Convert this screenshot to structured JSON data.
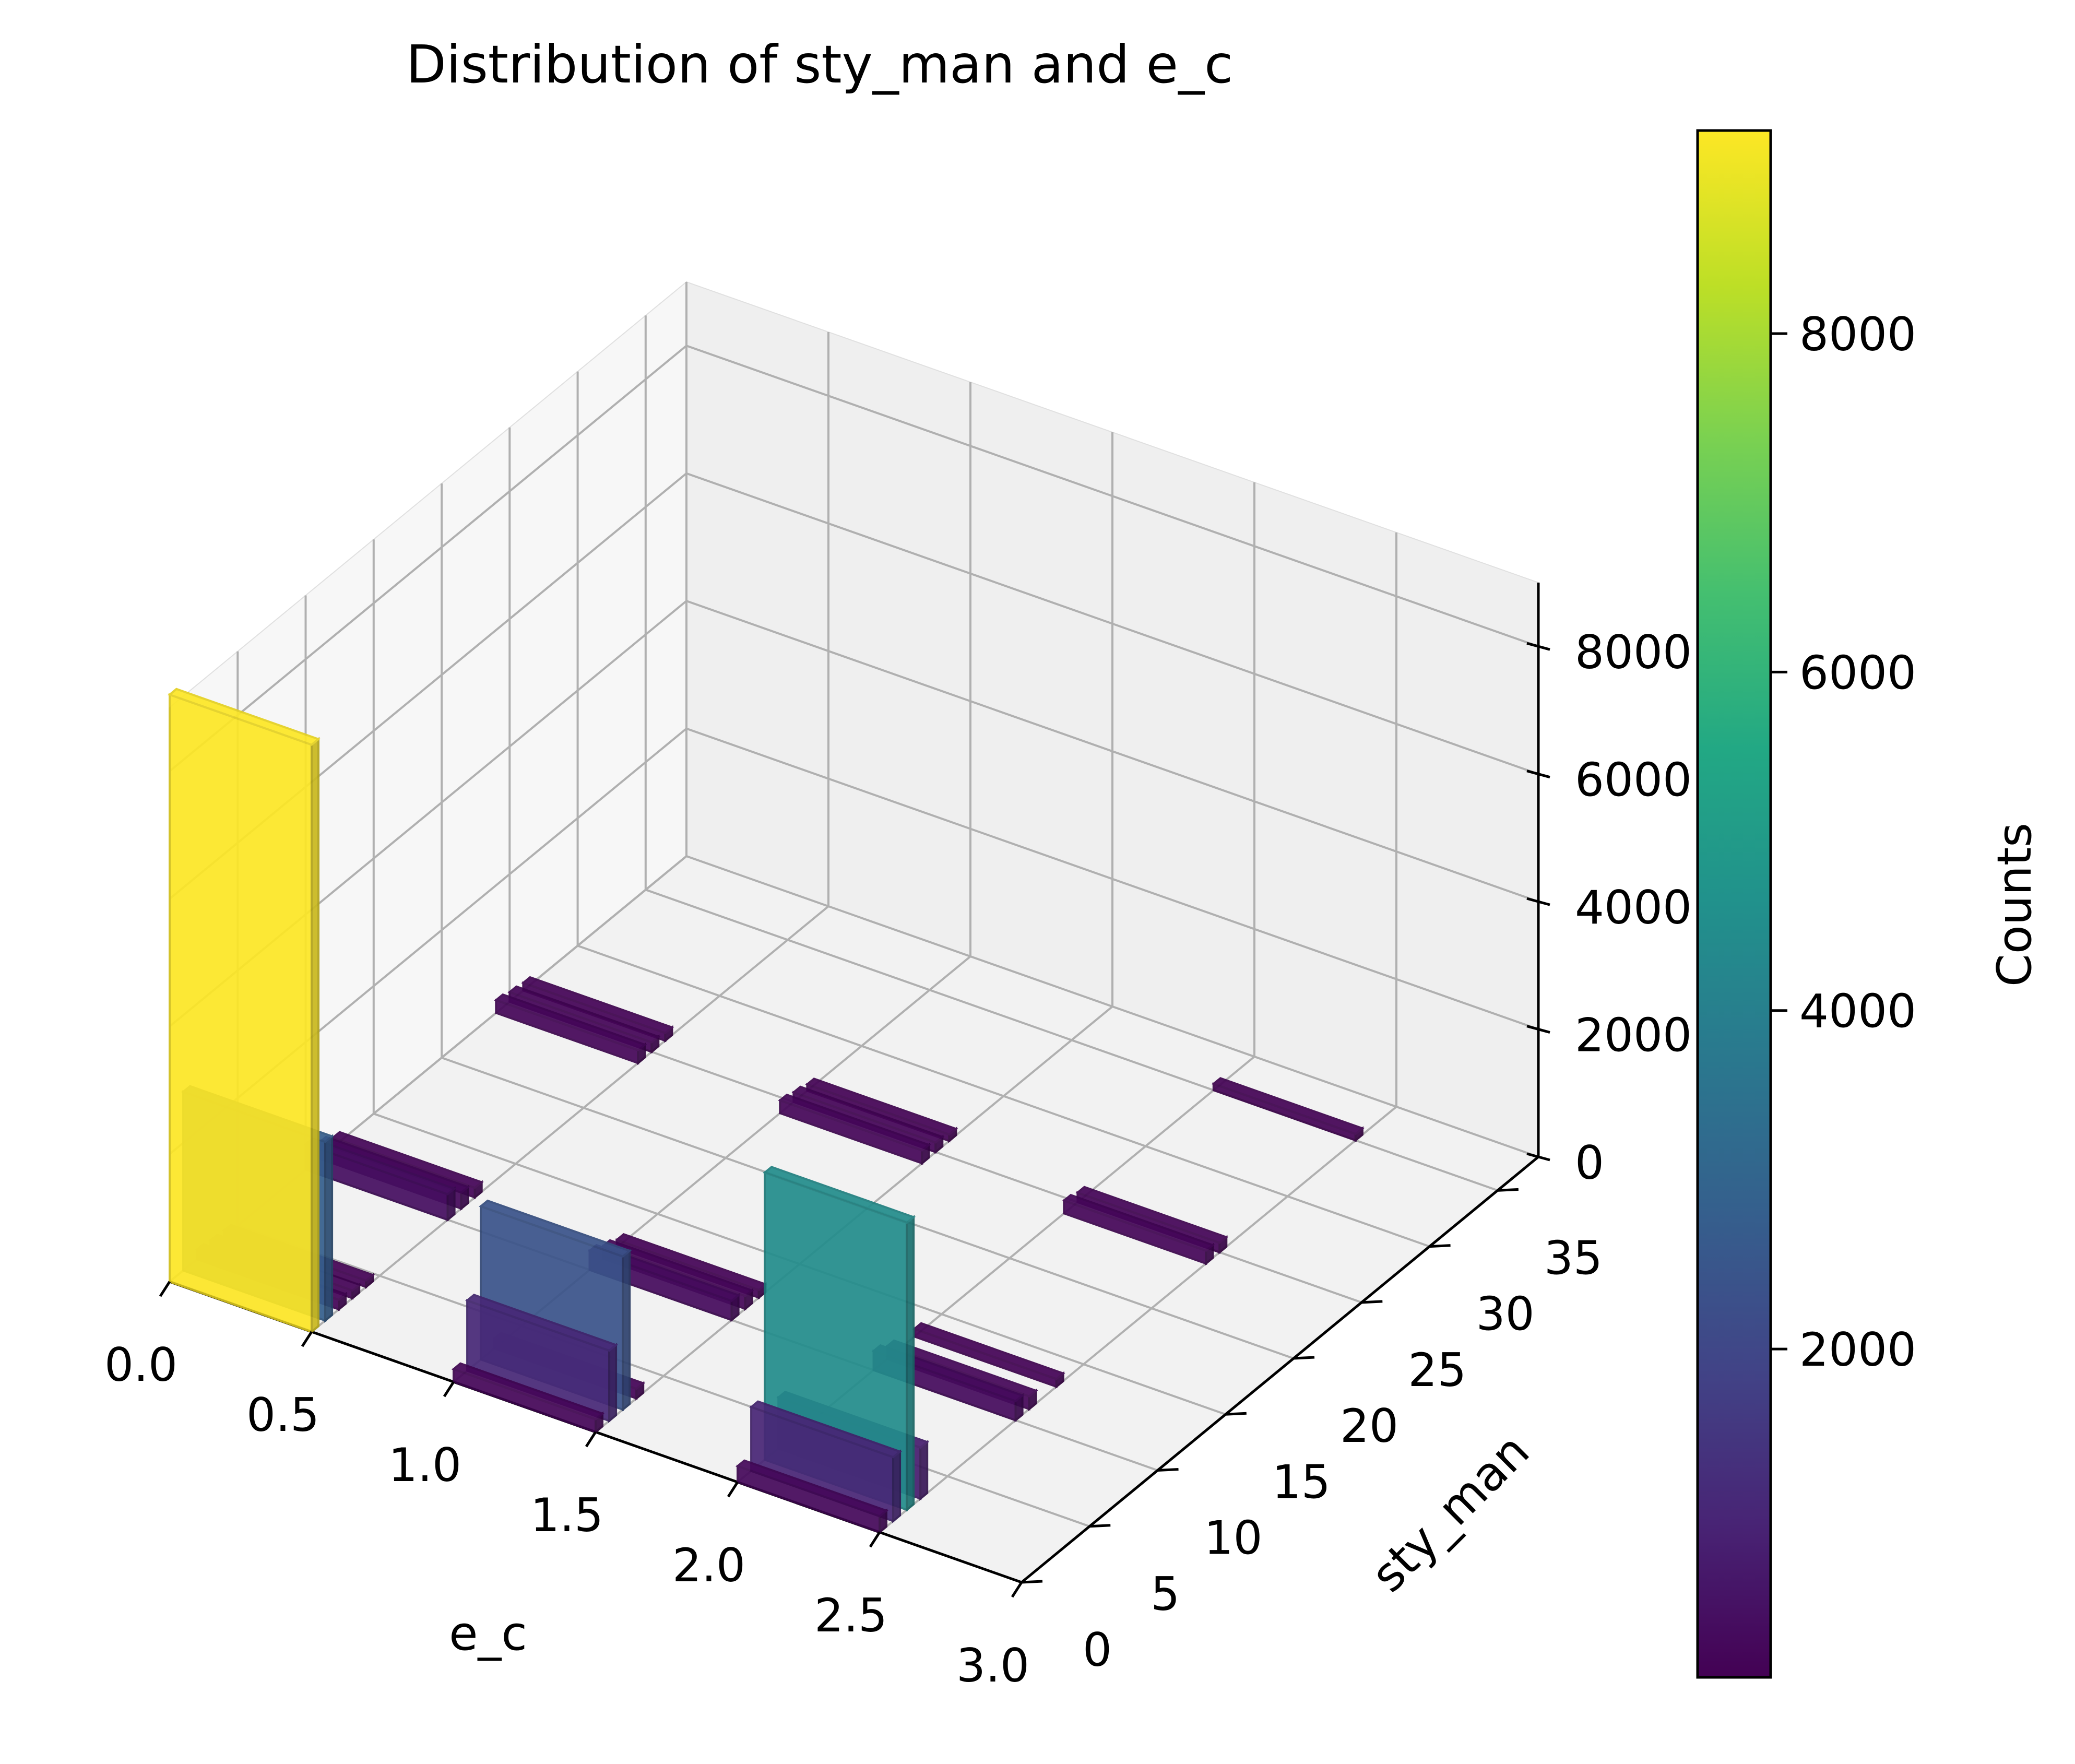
{
  "chart_data": {
    "type": "bar3d",
    "title": "Distribution of sty_man and e_c",
    "xlabel": "e_c",
    "ylabel": "sty_man",
    "zlabel": "",
    "x_ticks": [
      "0.0",
      "0.5",
      "1.0",
      "1.5",
      "2.0",
      "2.5",
      "3.0"
    ],
    "y_ticks": [
      "0",
      "5",
      "10",
      "15",
      "20",
      "25",
      "30",
      "35"
    ],
    "z_ticks": [
      "0",
      "2000",
      "4000",
      "6000",
      "8000"
    ],
    "xlim": [
      0,
      3
    ],
    "ylim": [
      0,
      38
    ],
    "zlim": [
      0,
      9000
    ],
    "grid": true,
    "colormap": "viridis",
    "colorbar": {
      "label": "Counts",
      "ticks": [
        "2000",
        "4000",
        "6000",
        "8000"
      ],
      "range": [
        60,
        9200
      ]
    },
    "bars": [
      {
        "e_c": 0,
        "sty_man": 0,
        "count": 9200
      },
      {
        "e_c": 0,
        "sty_man": 1,
        "count": 2800
      },
      {
        "e_c": 0,
        "sty_man": 2,
        "count": 150
      },
      {
        "e_c": 0,
        "sty_man": 3,
        "count": 120
      },
      {
        "e_c": 0,
        "sty_man": 4,
        "count": 100
      },
      {
        "e_c": 0,
        "sty_man": 10,
        "count": 400
      },
      {
        "e_c": 0,
        "sty_man": 11,
        "count": 250
      },
      {
        "e_c": 0,
        "sty_man": 12,
        "count": 150
      },
      {
        "e_c": 0,
        "sty_man": 24,
        "count": 200
      },
      {
        "e_c": 0,
        "sty_man": 25,
        "count": 150
      },
      {
        "e_c": 0,
        "sty_man": 26,
        "count": 120
      },
      {
        "e_c": 1,
        "sty_man": 0,
        "count": 200
      },
      {
        "e_c": 1,
        "sty_man": 1,
        "count": 1100
      },
      {
        "e_c": 1,
        "sty_man": 2,
        "count": 2400
      },
      {
        "e_c": 1,
        "sty_man": 3,
        "count": 150
      },
      {
        "e_c": 1,
        "sty_man": 10,
        "count": 300
      },
      {
        "e_c": 1,
        "sty_man": 11,
        "count": 200
      },
      {
        "e_c": 1,
        "sty_man": 12,
        "count": 120
      },
      {
        "e_c": 1,
        "sty_man": 24,
        "count": 200
      },
      {
        "e_c": 1,
        "sty_man": 25,
        "count": 150
      },
      {
        "e_c": 1,
        "sty_man": 26,
        "count": 100
      },
      {
        "e_c": 2,
        "sty_man": 0,
        "count": 250
      },
      {
        "e_c": 2,
        "sty_man": 1,
        "count": 1000
      },
      {
        "e_c": 2,
        "sty_man": 2,
        "count": 4500
      },
      {
        "e_c": 2,
        "sty_man": 3,
        "count": 800
      },
      {
        "e_c": 2,
        "sty_man": 10,
        "count": 300
      },
      {
        "e_c": 2,
        "sty_man": 11,
        "count": 200
      },
      {
        "e_c": 2,
        "sty_man": 13,
        "count": 120
      },
      {
        "e_c": 2,
        "sty_man": 24,
        "count": 200
      },
      {
        "e_c": 2,
        "sty_man": 25,
        "count": 150
      },
      {
        "e_c": 2,
        "sty_man": 35,
        "count": 100
      }
    ]
  }
}
